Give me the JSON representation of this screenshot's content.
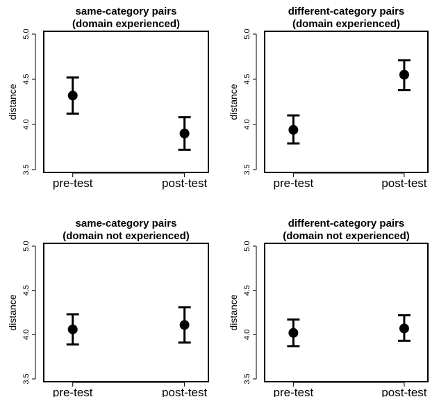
{
  "chart_data": [
    {
      "type": "scatter",
      "title_line1": "same-category pairs",
      "title_line2": "(domain experienced)",
      "xlabel": "",
      "ylabel": "distance",
      "categories": [
        "pre-test",
        "post-test"
      ],
      "ylim": [
        3.5,
        5.0
      ],
      "yticks": [
        "3.5",
        "4.0",
        "4.5",
        "5.0"
      ],
      "values": [
        4.32,
        3.9
      ],
      "err_low": [
        4.12,
        3.72
      ],
      "err_high": [
        4.52,
        4.08
      ],
      "grid": false,
      "marker_color": "#000000"
    },
    {
      "type": "scatter",
      "title_line1": "different-category pairs",
      "title_line2": "(domain experienced)",
      "xlabel": "",
      "ylabel": "distance",
      "categories": [
        "pre-test",
        "post-test"
      ],
      "ylim": [
        3.5,
        5.0
      ],
      "yticks": [
        "3.5",
        "4.0",
        "4.5",
        "5.0"
      ],
      "values": [
        3.94,
        4.55
      ],
      "err_low": [
        3.79,
        4.38
      ],
      "err_high": [
        4.1,
        4.71
      ],
      "grid": false,
      "marker_color": "#000000"
    },
    {
      "type": "scatter",
      "title_line1": "same-category pairs",
      "title_line2": "(domain not experienced)",
      "xlabel": "",
      "ylabel": "distance",
      "categories": [
        "pre-test",
        "post-test"
      ],
      "ylim": [
        3.5,
        5.0
      ],
      "yticks": [
        "3.5",
        "4.0",
        "4.5",
        "5.0"
      ],
      "values": [
        4.06,
        4.11
      ],
      "err_low": [
        3.89,
        3.91
      ],
      "err_high": [
        4.23,
        4.31
      ],
      "grid": false,
      "marker_color": "#000000"
    },
    {
      "type": "scatter",
      "title_line1": "different-category pairs",
      "title_line2": "(domain not experienced)",
      "xlabel": "",
      "ylabel": "distance",
      "categories": [
        "pre-test",
        "post-test"
      ],
      "ylim": [
        3.5,
        5.0
      ],
      "yticks": [
        "3.5",
        "4.0",
        "4.5",
        "5.0"
      ],
      "values": [
        4.02,
        4.07
      ],
      "err_low": [
        3.87,
        3.93
      ],
      "err_high": [
        4.17,
        4.22
      ],
      "grid": false,
      "marker_color": "#000000"
    }
  ]
}
